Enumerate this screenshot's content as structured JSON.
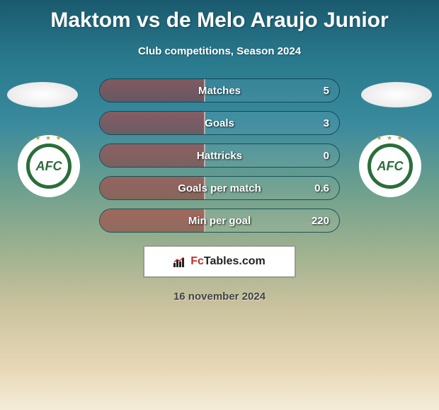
{
  "header": {
    "title": "Maktom vs de Melo Araujo Junior",
    "subtitle": "Club competitions, Season 2024"
  },
  "players": {
    "left": {
      "badge_text": "AFC",
      "stars": "★ ★ ★"
    },
    "right": {
      "badge_text": "AFC",
      "stars": "★ ★ ★"
    }
  },
  "stats": [
    {
      "label": "Matches",
      "right_value": "5",
      "left_fill_pct": 44
    },
    {
      "label": "Goals",
      "right_value": "3",
      "left_fill_pct": 44
    },
    {
      "label": "Hattricks",
      "right_value": "0",
      "left_fill_pct": 44
    },
    {
      "label": "Goals per match",
      "right_value": "0.6",
      "left_fill_pct": 44
    },
    {
      "label": "Min per goal",
      "right_value": "220",
      "left_fill_pct": 44
    }
  ],
  "styling": {
    "stat_border_color": "rgba(0,60,70,0.8)",
    "stat_fill_color": "rgba(160,50,50,0.55)",
    "text_color": "#ffffff",
    "badge_ring_color": "#2a6e3a"
  },
  "footer": {
    "brand_prefix": "Fc",
    "brand_suffix": "Tables.com",
    "date": "16 november 2024"
  }
}
